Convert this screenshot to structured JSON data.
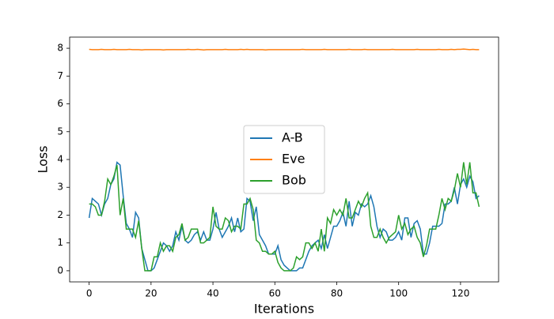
{
  "chart_data": {
    "type": "line",
    "xlabel": "Iterations",
    "ylabel": "Loss",
    "x": [
      0,
      1,
      2,
      3,
      4,
      5,
      6,
      7,
      8,
      9,
      10,
      11,
      12,
      13,
      14,
      15,
      16,
      17,
      18,
      19,
      20,
      21,
      22,
      23,
      24,
      25,
      26,
      27,
      28,
      29,
      30,
      31,
      32,
      33,
      34,
      35,
      36,
      37,
      38,
      39,
      40,
      41,
      42,
      43,
      44,
      45,
      46,
      47,
      48,
      49,
      50,
      51,
      52,
      53,
      54,
      55,
      56,
      57,
      58,
      59,
      60,
      61,
      62,
      63,
      64,
      65,
      66,
      67,
      68,
      69,
      70,
      71,
      72,
      73,
      74,
      75,
      76,
      77,
      78,
      79,
      80,
      81,
      82,
      83,
      84,
      85,
      86,
      87,
      88,
      89,
      90,
      91,
      92,
      93,
      94,
      95,
      96,
      97,
      98,
      99,
      100,
      101,
      102,
      103,
      104,
      105,
      106,
      107,
      108,
      109,
      110,
      111,
      112,
      113,
      114,
      115,
      116,
      117,
      118,
      119,
      120,
      121,
      122,
      123,
      124,
      125,
      126
    ],
    "series": [
      {
        "name": "A-B",
        "color": "#1f77b4",
        "values": [
          1.9,
          2.6,
          2.5,
          2.4,
          2.0,
          2.4,
          2.6,
          3.1,
          3.3,
          3.9,
          3.8,
          2.7,
          1.7,
          1.5,
          1.2,
          2.1,
          1.9,
          0.8,
          0.4,
          0.0,
          0.0,
          0.1,
          0.4,
          0.7,
          1.0,
          0.9,
          0.7,
          0.9,
          1.4,
          1.1,
          1.6,
          1.1,
          1.0,
          1.1,
          1.3,
          1.4,
          1.1,
          1.4,
          1.1,
          1.1,
          1.5,
          2.1,
          1.5,
          1.2,
          1.4,
          1.6,
          1.9,
          1.4,
          1.9,
          1.4,
          1.5,
          2.6,
          2.5,
          1.8,
          2.3,
          1.3,
          1.1,
          0.9,
          0.6,
          0.6,
          0.6,
          0.9,
          0.4,
          0.2,
          0.1,
          0.0,
          0.0,
          0.0,
          0.1,
          0.1,
          0.4,
          0.7,
          0.9,
          1.0,
          1.1,
          0.8,
          1.3,
          0.8,
          1.2,
          1.6,
          1.6,
          1.8,
          2.1,
          1.6,
          2.5,
          1.6,
          2.1,
          2.0,
          2.4,
          2.3,
          2.4,
          2.7,
          2.3,
          1.6,
          1.2,
          1.5,
          1.4,
          1.1,
          1.1,
          1.2,
          1.4,
          1.1,
          1.9,
          1.9,
          1.2,
          1.7,
          1.8,
          1.5,
          0.6,
          0.6,
          1.0,
          1.6,
          1.6,
          1.6,
          1.7,
          2.4,
          2.4,
          2.5,
          3.0,
          2.4,
          3.1,
          3.3,
          3.0,
          3.4,
          3.2,
          2.6,
          2.7
        ]
      },
      {
        "name": "Eve",
        "color": "#ff7f0e",
        "values": [
          7.96,
          7.95,
          7.95,
          7.95,
          7.96,
          7.95,
          7.95,
          7.95,
          7.96,
          7.95,
          7.95,
          7.95,
          7.95,
          7.96,
          7.95,
          7.95,
          7.95,
          7.94,
          7.95,
          7.95,
          7.95,
          7.95,
          7.95,
          7.95,
          7.94,
          7.95,
          7.95,
          7.95,
          7.95,
          7.95,
          7.95,
          7.95,
          7.96,
          7.95,
          7.95,
          7.96,
          7.95,
          7.94,
          7.95,
          7.95,
          7.95,
          7.95,
          7.95,
          7.95,
          7.96,
          7.95,
          7.95,
          7.95,
          7.95,
          7.96,
          7.95,
          7.96,
          7.95,
          7.95,
          7.95,
          7.95,
          7.95,
          7.94,
          7.95,
          7.95,
          7.95,
          7.95,
          7.95,
          7.95,
          7.95,
          7.95,
          7.95,
          7.95,
          7.95,
          7.96,
          7.95,
          7.95,
          7.95,
          7.95,
          7.95,
          7.95,
          7.96,
          7.95,
          7.95,
          7.95,
          7.95,
          7.95,
          7.95,
          7.95,
          7.96,
          7.95,
          7.95,
          7.95,
          7.95,
          7.96,
          7.95,
          7.95,
          7.95,
          7.95,
          7.95,
          7.95,
          7.95,
          7.95,
          7.96,
          7.95,
          7.95,
          7.95,
          7.95,
          7.95,
          7.95,
          7.95,
          7.96,
          7.95,
          7.95,
          7.95,
          7.95,
          7.95,
          7.95,
          7.96,
          7.95,
          7.95,
          7.95,
          7.96,
          7.95,
          7.96,
          7.96,
          7.97,
          7.96,
          7.95,
          7.96,
          7.95,
          7.95
        ]
      },
      {
        "name": "Bob",
        "color": "#2ca02c",
        "values": [
          2.4,
          2.4,
          2.3,
          2.0,
          2.0,
          2.5,
          3.3,
          3.1,
          3.4,
          3.8,
          2.0,
          2.6,
          1.5,
          1.5,
          1.5,
          1.2,
          1.8,
          0.8,
          0.0,
          0.0,
          0.0,
          0.5,
          0.5,
          1.0,
          0.7,
          0.9,
          0.9,
          0.7,
          1.2,
          1.3,
          1.7,
          1.1,
          1.2,
          1.5,
          1.5,
          1.5,
          1.0,
          1.0,
          1.1,
          1.2,
          2.3,
          1.6,
          1.5,
          1.5,
          1.9,
          1.8,
          1.4,
          1.6,
          1.6,
          1.5,
          2.4,
          2.4,
          2.6,
          2.2,
          1.1,
          1.0,
          0.7,
          0.7,
          0.6,
          0.6,
          0.7,
          0.3,
          0.1,
          0.0,
          0.0,
          0.0,
          0.1,
          0.5,
          0.4,
          0.5,
          1.0,
          1.0,
          0.8,
          1.0,
          0.7,
          1.5,
          0.7,
          1.9,
          1.7,
          2.2,
          2.0,
          2.2,
          2.0,
          2.6,
          1.9,
          1.9,
          2.2,
          2.5,
          2.3,
          2.6,
          2.8,
          1.6,
          1.2,
          1.2,
          1.5,
          1.2,
          1.0,
          1.2,
          1.3,
          1.4,
          2.0,
          1.5,
          1.7,
          1.3,
          1.5,
          1.6,
          1.2,
          1.0,
          0.5,
          0.9,
          1.5,
          1.5,
          1.5,
          2.0,
          2.6,
          2.2,
          2.6,
          2.5,
          2.9,
          3.5,
          3.0,
          3.9,
          3.1,
          3.9,
          2.8,
          2.8,
          2.3
        ]
      }
    ],
    "xlim": [
      -6.3,
      132.3
    ],
    "xticks": [
      0,
      20,
      40,
      60,
      80,
      100,
      120
    ],
    "ylim": [
      -0.4,
      8.4
    ],
    "yticks": [
      0,
      1,
      2,
      3,
      4,
      5,
      6,
      7,
      8
    ],
    "legend": "center"
  }
}
